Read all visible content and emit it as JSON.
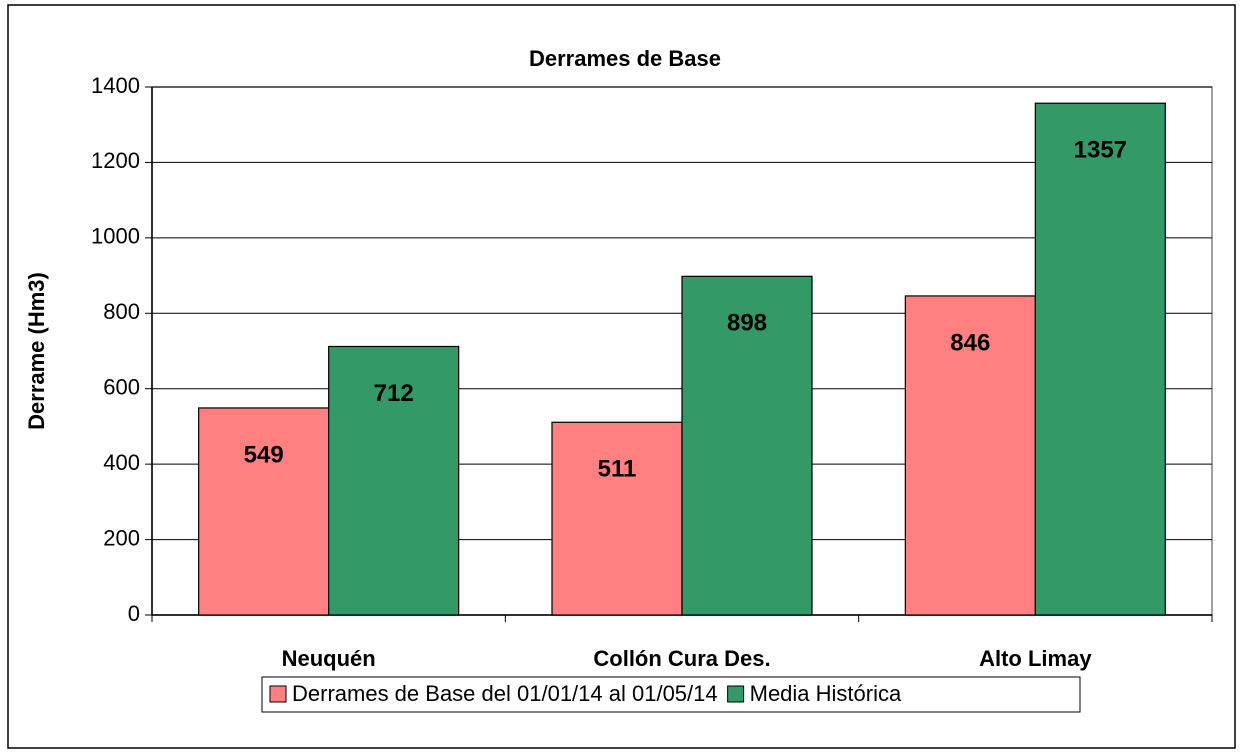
{
  "chart_data": {
    "type": "bar",
    "title": "Derrames de Base",
    "ylabel": "Derrame (Hm3)",
    "categories": [
      "Neuquén",
      "Collón Cura Des.",
      "Alto Limay"
    ],
    "series": [
      {
        "name": "Derrames de Base del 01/01/14 al 01/05/14",
        "color": "#ff8080",
        "values": [
          549,
          511,
          846
        ]
      },
      {
        "name": "Media Histórica",
        "color": "#339966",
        "values": [
          712,
          898,
          1357
        ]
      }
    ],
    "ylim": [
      0,
      1400
    ],
    "yticks": [
      0,
      200,
      400,
      600,
      800,
      1000,
      1200,
      1400
    ],
    "grid": true,
    "legend": "bottom"
  }
}
